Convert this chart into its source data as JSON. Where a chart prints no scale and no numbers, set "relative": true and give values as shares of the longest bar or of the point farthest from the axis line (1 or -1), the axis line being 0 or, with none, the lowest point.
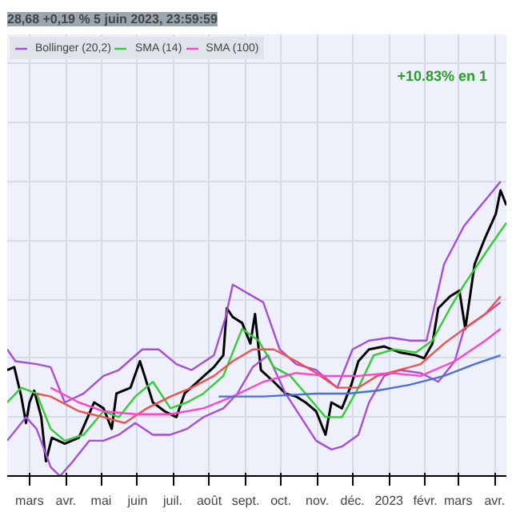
{
  "chart_data": {
    "type": "line",
    "relative": true,
    "title": "28,68 +0,19 % 5 juin 2023, 23:59:59",
    "annotations": [
      "+10.83% en 1"
    ],
    "grid": true,
    "legend": "top left",
    "tick_labels": "x",
    "marker": "none",
    "line_style": "solid",
    "xlim": [
      "2022-02-10",
      "2023-04-11"
    ],
    "xticks": [
      {
        "value": "2022-03-01",
        "label": "mars"
      },
      {
        "value": "2022-04-01",
        "label": "avr."
      },
      {
        "value": "2022-05-01",
        "label": "mai"
      },
      {
        "value": "2022-06-01",
        "label": "juin"
      },
      {
        "value": "2022-07-01",
        "label": "juil."
      },
      {
        "value": "2022-08-01",
        "label": "août"
      },
      {
        "value": "2022-09-01",
        "label": "sept."
      },
      {
        "value": "2022-10-01",
        "label": "oct."
      },
      {
        "value": "2022-11-01",
        "label": "nov."
      },
      {
        "value": "2022-12-01",
        "label": "déc."
      },
      {
        "value": "2023-01-01",
        "label": "2023"
      },
      {
        "value": "2023-02-01",
        "label": "févr."
      },
      {
        "value": "2023-03-01",
        "label": "mars"
      },
      {
        "value": "2023-04-01",
        "label": "avr."
      }
    ],
    "series": [
      {
        "color": "#000000",
        "x": [
          "2022-02-10",
          "2022-02-16",
          "2022-02-22",
          "2022-02-26",
          "2022-03-01",
          "2022-03-05",
          "2022-03-11",
          "2022-03-15",
          "2022-03-20",
          "2022-03-31",
          "2022-04-12",
          "2022-04-25",
          "2022-05-03",
          "2022-05-10",
          "2022-05-14",
          "2022-05-26",
          "2022-06-03",
          "2022-06-07",
          "2022-06-14",
          "2022-06-24",
          "2022-07-04",
          "2022-07-11",
          "2022-07-22",
          "2022-08-05",
          "2022-08-13",
          "2022-08-16",
          "2022-08-21",
          "2022-08-29",
          "2022-09-05",
          "2022-09-09",
          "2022-09-14",
          "2022-09-25",
          "2022-10-05",
          "2022-10-14",
          "2022-10-22",
          "2022-10-31",
          "2022-11-08",
          "2022-11-13",
          "2022-11-22",
          "2022-11-30",
          "2022-12-06",
          "2022-12-15",
          "2022-12-28",
          "2023-01-10",
          "2023-01-24",
          "2023-01-31",
          "2023-02-07",
          "2023-02-12",
          "2023-02-22",
          "2023-03-02",
          "2023-03-07",
          "2023-03-15",
          "2023-03-24",
          "2023-04-02",
          "2023-04-06",
          "2023-04-11"
        ],
        "values": [
          0.36,
          0.37,
          0.27,
          0.18,
          0.25,
          0.29,
          0.2,
          0.05,
          0.13,
          0.11,
          0.13,
          0.25,
          0.23,
          0.16,
          0.28,
          0.3,
          0.39,
          0.34,
          0.25,
          0.22,
          0.2,
          0.28,
          0.32,
          0.37,
          0.41,
          0.57,
          0.54,
          0.52,
          0.45,
          0.55,
          0.36,
          0.32,
          0.28,
          0.27,
          0.25,
          0.22,
          0.14,
          0.25,
          0.23,
          0.31,
          0.39,
          0.43,
          0.44,
          0.42,
          0.41,
          0.4,
          0.45,
          0.57,
          0.61,
          0.63,
          0.5,
          0.72,
          0.81,
          0.89,
          0.97,
          0.92
        ]
      },
      {
        "name": "Bollinger (20,2)",
        "color": "#a64dd9",
        "x": [
          "2022-02-10",
          "2022-02-17",
          "2022-03-07",
          "2022-03-19",
          "2022-03-31",
          "2022-04-16",
          "2022-05-03",
          "2022-05-16",
          "2022-06-05",
          "2022-06-19",
          "2022-07-04",
          "2022-07-17",
          "2022-08-05",
          "2022-08-15",
          "2022-08-21",
          "2022-09-03",
          "2022-09-16",
          "2022-09-30",
          "2022-10-14",
          "2022-10-31",
          "2022-11-18",
          "2022-12-01",
          "2022-12-15",
          "2023-01-02",
          "2023-01-19",
          "2023-02-02",
          "2023-02-17",
          "2023-03-06",
          "2023-04-06"
        ],
        "values": [
          0.43,
          0.39,
          0.38,
          0.37,
          0.25,
          0.28,
          0.34,
          0.36,
          0.43,
          0.43,
          0.38,
          0.36,
          0.41,
          0.54,
          0.65,
          0.62,
          0.59,
          0.43,
          0.38,
          0.36,
          0.3,
          0.43,
          0.46,
          0.47,
          0.46,
          0.46,
          0.72,
          0.85,
          1.0
        ]
      },
      {
        "color": "#a64dd9",
        "x": [
          "2022-02-10",
          "2022-02-26",
          "2022-03-07",
          "2022-03-19",
          "2022-03-27",
          "2022-04-07",
          "2022-04-21",
          "2022-05-03",
          "2022-05-16",
          "2022-05-30",
          "2022-06-14",
          "2022-06-29",
          "2022-07-13",
          "2022-07-27",
          "2022-08-13",
          "2022-08-25",
          "2022-09-07",
          "2022-09-20",
          "2022-10-05",
          "2022-10-18",
          "2022-10-31",
          "2022-11-13",
          "2022-11-22",
          "2022-12-06",
          "2022-12-15",
          "2022-12-28",
          "2023-01-10",
          "2023-01-28",
          "2023-02-12",
          "2023-02-26",
          "2023-03-06",
          "2023-03-24",
          "2023-04-06"
        ],
        "values": [
          0.12,
          0.2,
          0.16,
          0.03,
          0.0,
          0.05,
          0.12,
          0.12,
          0.14,
          0.18,
          0.14,
          0.14,
          0.16,
          0.2,
          0.23,
          0.28,
          0.37,
          0.41,
          0.28,
          0.2,
          0.12,
          0.09,
          0.1,
          0.14,
          0.25,
          0.34,
          0.36,
          0.35,
          0.32,
          0.39,
          0.5,
          0.55,
          0.59
        ]
      },
      {
        "name": "SMA (14)",
        "color": "#33cc33",
        "x": [
          "2022-02-10",
          "2022-02-22",
          "2022-03-07",
          "2022-03-19",
          "2022-03-31",
          "2022-04-16",
          "2022-05-03",
          "2022-05-16",
          "2022-05-30",
          "2022-06-14",
          "2022-06-29",
          "2022-07-13",
          "2022-07-27",
          "2022-08-13",
          "2022-08-29",
          "2022-09-12",
          "2022-09-25",
          "2022-10-09",
          "2022-10-22",
          "2022-11-08",
          "2022-11-22",
          "2022-12-06",
          "2022-12-19",
          "2023-01-05",
          "2023-01-24",
          "2023-02-07",
          "2023-02-22",
          "2023-03-06",
          "2023-03-28",
          "2023-04-11"
        ],
        "values": [
          0.25,
          0.3,
          0.28,
          0.16,
          0.12,
          0.14,
          0.22,
          0.2,
          0.27,
          0.32,
          0.23,
          0.25,
          0.28,
          0.34,
          0.5,
          0.46,
          0.37,
          0.34,
          0.28,
          0.2,
          0.2,
          0.3,
          0.41,
          0.43,
          0.42,
          0.46,
          0.57,
          0.65,
          0.78,
          0.86
        ]
      },
      {
        "color": "#f05050",
        "x": [
          "2022-03-07",
          "2022-03-19",
          "2022-04-12",
          "2022-05-03",
          "2022-05-21",
          "2022-06-09",
          "2022-06-29",
          "2022-07-17",
          "2022-08-05",
          "2022-08-21",
          "2022-09-07",
          "2022-09-25",
          "2022-10-14",
          "2022-10-31",
          "2022-11-18",
          "2022-12-06",
          "2022-12-22",
          "2023-01-10",
          "2023-01-28",
          "2023-02-17",
          "2023-03-06",
          "2023-03-24",
          "2023-04-06"
        ],
        "values": [
          0.28,
          0.27,
          0.22,
          0.2,
          0.18,
          0.23,
          0.27,
          0.3,
          0.34,
          0.39,
          0.43,
          0.43,
          0.39,
          0.35,
          0.3,
          0.3,
          0.34,
          0.36,
          0.38,
          0.45,
          0.5,
          0.55,
          0.61
        ]
      },
      {
        "name": "SMA (100)",
        "color": "#ff44cc",
        "x": [
          "2022-03-19",
          "2022-04-12",
          "2022-05-03",
          "2022-05-30",
          "2022-06-29",
          "2022-07-27",
          "2022-08-21",
          "2022-09-16",
          "2022-10-14",
          "2022-11-08",
          "2022-12-06",
          "2023-01-02",
          "2023-01-28",
          "2023-02-26",
          "2023-03-24",
          "2023-04-06"
        ],
        "values": [
          0.3,
          0.25,
          0.22,
          0.21,
          0.21,
          0.23,
          0.27,
          0.32,
          0.35,
          0.34,
          0.34,
          0.35,
          0.34,
          0.39,
          0.46,
          0.5
        ]
      },
      {
        "color": "#4a6fd8",
        "x": [
          "2022-08-09",
          "2022-09-16",
          "2022-10-31",
          "2022-11-27",
          "2022-12-22",
          "2023-01-19",
          "2023-02-17",
          "2023-03-15",
          "2023-04-06"
        ],
        "values": [
          0.27,
          0.27,
          0.28,
          0.28,
          0.29,
          0.31,
          0.34,
          0.38,
          0.41
        ]
      }
    ]
  }
}
